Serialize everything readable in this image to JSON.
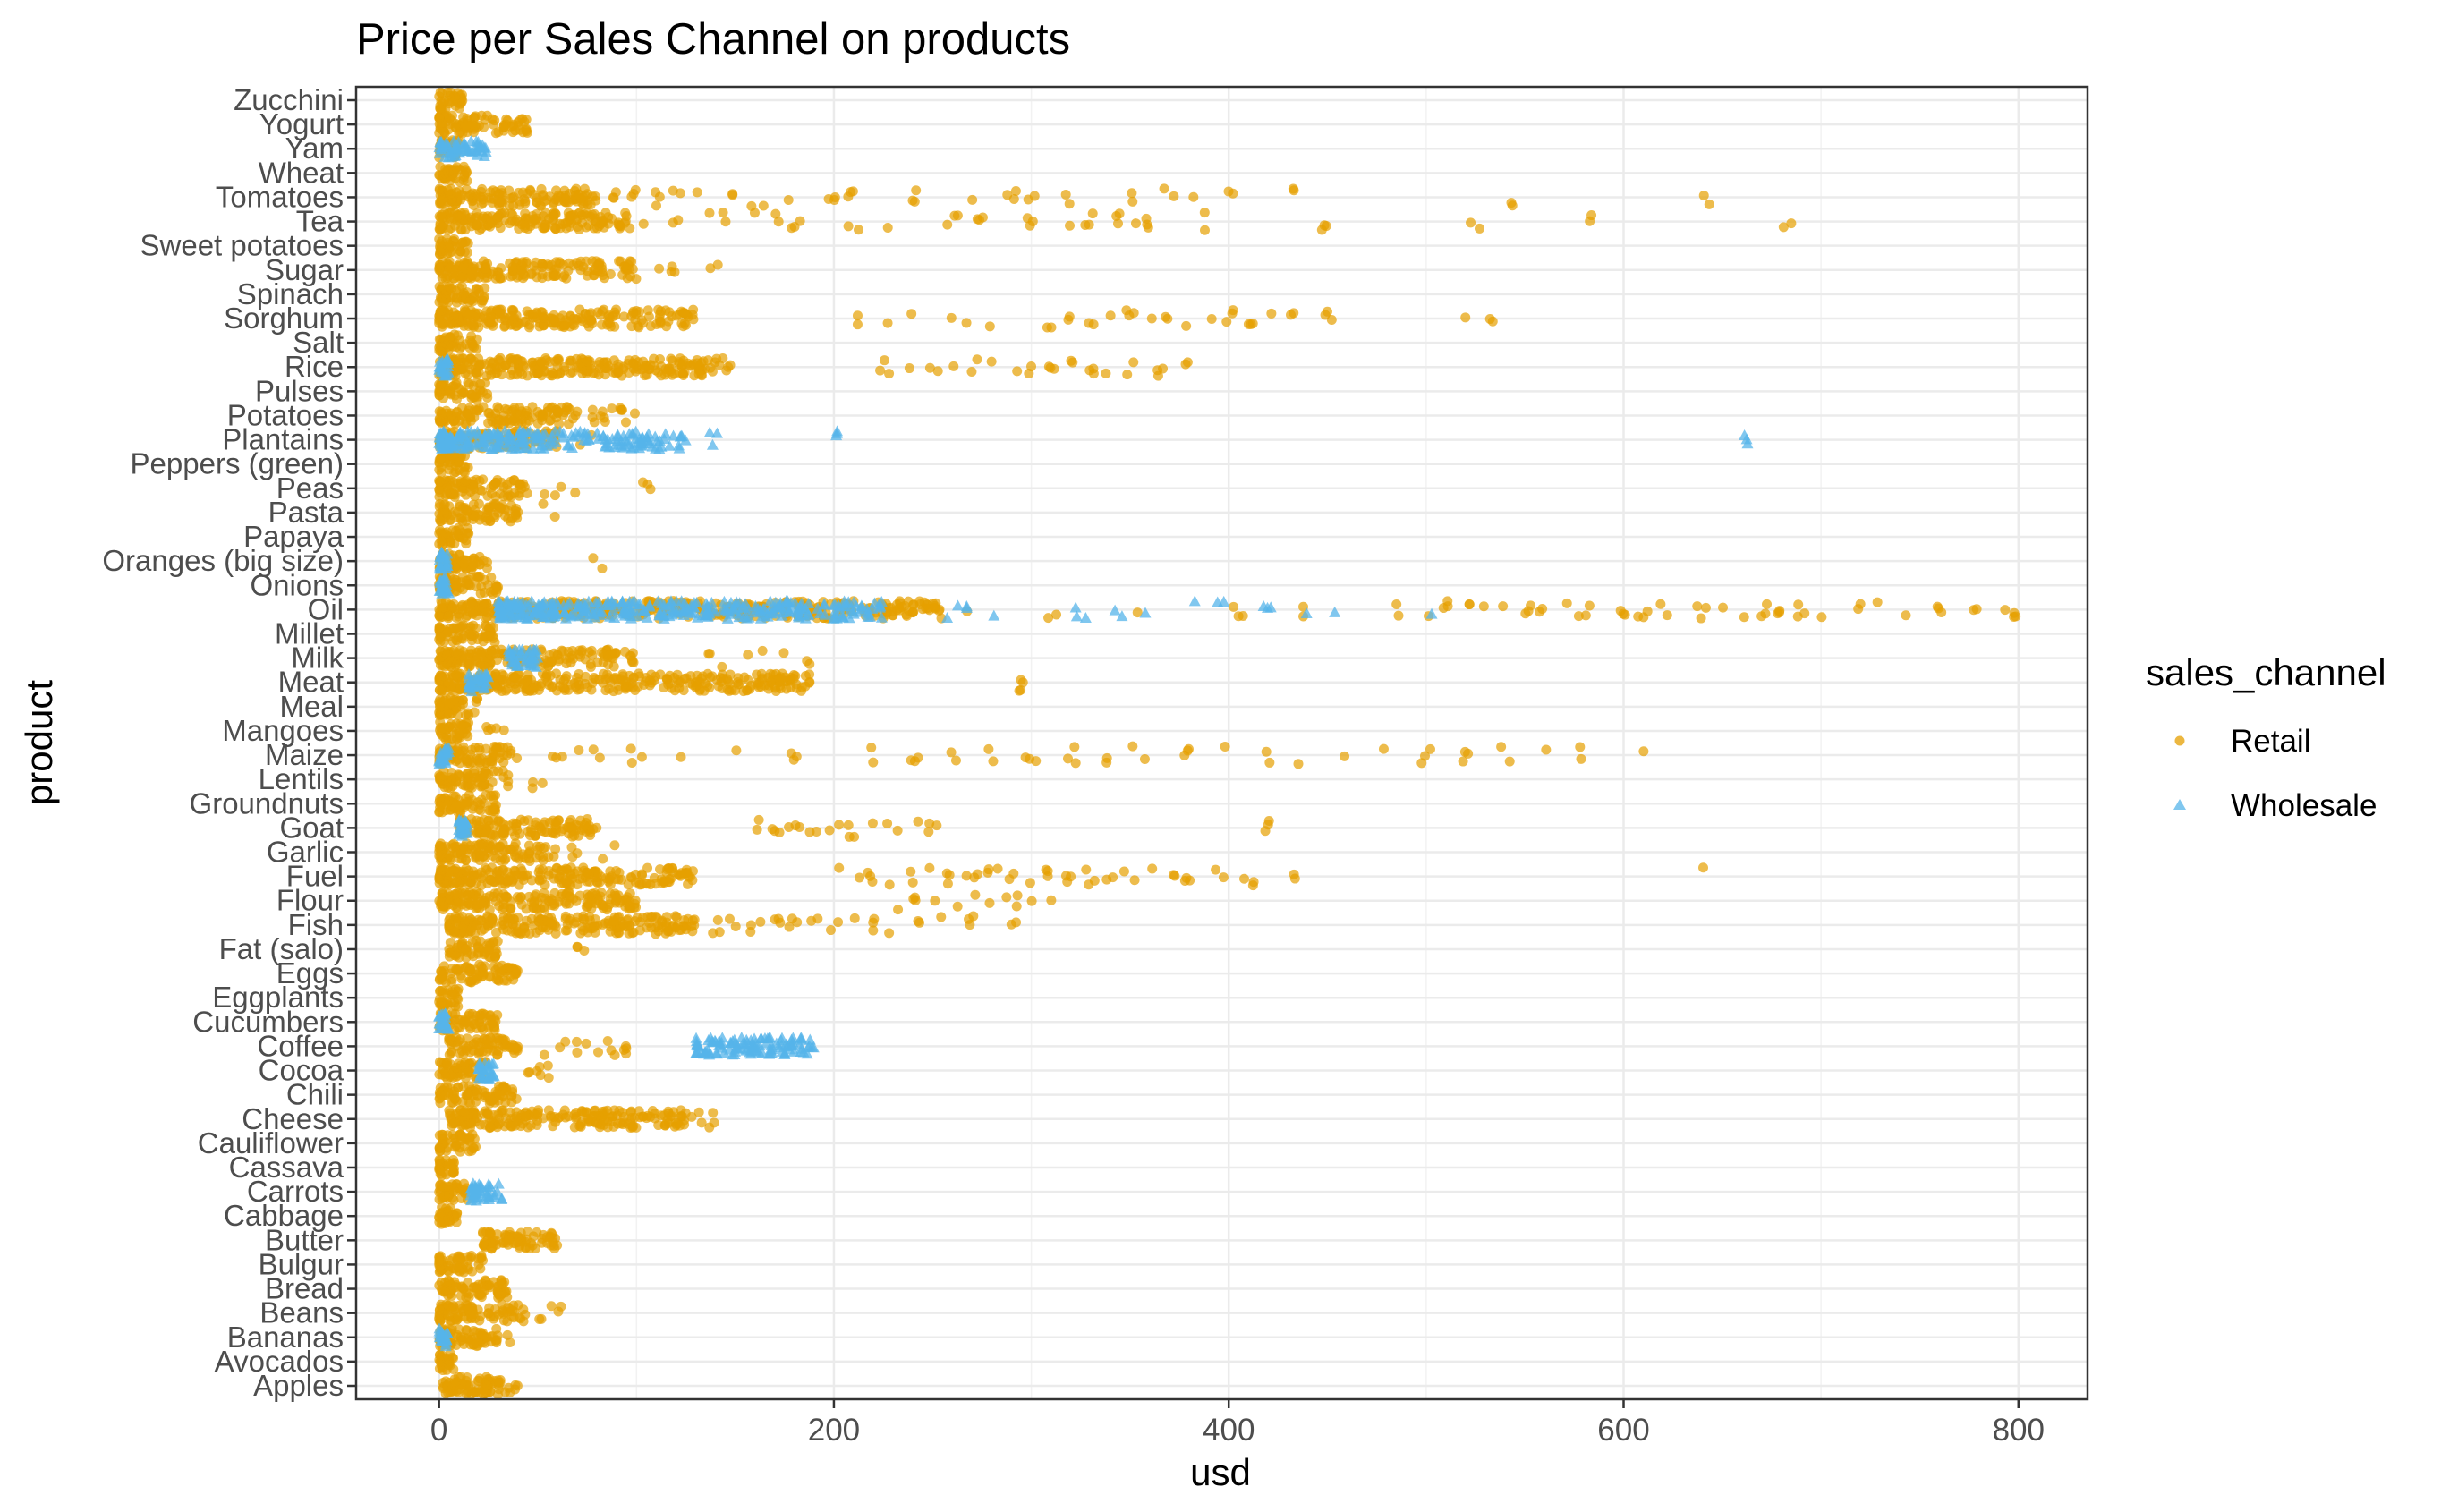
{
  "chart_data": {
    "type": "scatter",
    "title": "Price per Sales Channel on products",
    "xlabel": "usd",
    "ylabel": "product",
    "xlim": [
      -42,
      835
    ],
    "x_ticks": [
      0,
      200,
      400,
      600,
      800
    ],
    "x_tick_labels": [
      "0",
      "200",
      "400",
      "600",
      "800"
    ],
    "grid": true,
    "legend": {
      "title": "sales_channel",
      "placement": "right",
      "entries": [
        {
          "label": "Retail",
          "shape": "circle",
          "color": "#E69F00"
        },
        {
          "label": "Wholesale",
          "shape": "triangle",
          "color": "#56B4E9"
        }
      ]
    },
    "categories": [
      "Apples",
      "Avocados",
      "Bananas",
      "Beans",
      "Bread",
      "Bulgur",
      "Butter",
      "Cabbage",
      "Carrots",
      "Cassava",
      "Cauliflower",
      "Cheese",
      "Chili",
      "Cocoa",
      "Coffee",
      "Cucumbers",
      "Eggplants",
      "Eggs",
      "Fat (salo)",
      "Fish",
      "Flour",
      "Fuel",
      "Garlic",
      "Goat",
      "Groundnuts",
      "Lentils",
      "Maize",
      "Mangoes",
      "Meal",
      "Meat",
      "Milk",
      "Millet",
      "Oil",
      "Onions",
      "Oranges (big size)",
      "Papaya",
      "Pasta",
      "Peas",
      "Peppers (green)",
      "Plantains",
      "Potatoes",
      "Pulses",
      "Rice",
      "Salt",
      "Sorghum",
      "Spinach",
      "Sugar",
      "Sweet potatoes",
      "Tea",
      "Tomatoes",
      "Wheat",
      "Yam",
      "Yogurt",
      "Zucchini"
    ],
    "series": [
      {
        "name": "Retail",
        "ranges": [
          {
            "product": "Apples",
            "dense": [
              2,
              40
            ],
            "sparse": []
          },
          {
            "product": "Avocados",
            "dense": [
              0,
              8
            ],
            "sparse": []
          },
          {
            "product": "Bananas",
            "dense": [
              0,
              30
            ],
            "sparse": [
              33
            ]
          },
          {
            "product": "Beans",
            "dense": [
              0,
              45
            ],
            "sparse": [
              50,
              55,
              60
            ]
          },
          {
            "product": "Bread",
            "dense": [
              0,
              35
            ],
            "sparse": []
          },
          {
            "product": "Bulgur",
            "dense": [
              0,
              25
            ],
            "sparse": []
          },
          {
            "product": "Butter",
            "dense": [
              22,
              60
            ],
            "sparse": []
          },
          {
            "product": "Cabbage",
            "dense": [
              0,
              10
            ],
            "sparse": []
          },
          {
            "product": "Carrots",
            "dense": [
              0,
              15
            ],
            "sparse": []
          },
          {
            "product": "Cassava",
            "dense": [
              0,
              8
            ],
            "sparse": []
          },
          {
            "product": "Cauliflower",
            "dense": [
              0,
              20
            ],
            "sparse": []
          },
          {
            "product": "Cheese",
            "dense": [
              5,
              125
            ],
            "sparse": [
              128,
              133,
              138
            ]
          },
          {
            "product": "Chili",
            "dense": [
              0,
              40
            ],
            "sparse": []
          },
          {
            "product": "Cocoa",
            "dense": [
              0,
              25
            ],
            "sparse": [
              48,
              52,
              55,
              58
            ]
          },
          {
            "product": "Coffee",
            "dense": [
              5,
              40
            ],
            "sparse": [
              52,
              60,
              65,
              72,
              80,
              85,
              88,
              92,
              96
            ]
          },
          {
            "product": "Cucumbers",
            "dense": [
              0,
              30
            ],
            "sparse": []
          },
          {
            "product": "Eggplants",
            "dense": [
              0,
              10
            ],
            "sparse": []
          },
          {
            "product": "Eggs",
            "dense": [
              0,
              40
            ],
            "sparse": []
          },
          {
            "product": "Fat (salo)",
            "dense": [
              5,
              30
            ],
            "sparse": [
              72
            ]
          },
          {
            "product": "Fish",
            "dense": [
              5,
              130
            ],
            "sparse": [
              140,
              150,
              160,
              170,
              180,
              190,
              200,
              210,
              220,
              230,
              245,
              255,
              270,
              290
            ]
          },
          {
            "product": "Flour",
            "dense": [
              0,
              100
            ],
            "sparse": [
              230,
              240,
              250,
              260,
              270,
              280,
              290,
              300,
              310
            ]
          },
          {
            "product": "Fuel",
            "dense": [
              0,
              130
            ],
            "sparse": [
              200,
              210,
              220,
              230,
              240,
              250,
              260,
              270,
              280,
              290,
              300,
              310,
              320,
              330,
              340,
              350,
              360,
              370,
              380,
              395,
              410,
              435,
              638
            ]
          },
          {
            "product": "Garlic",
            "dense": [
              0,
              60
            ],
            "sparse": [
              70,
              80,
              90
            ]
          },
          {
            "product": "Goat",
            "dense": [
              10,
              80
            ],
            "sparse": [
              160,
              170,
              180,
              190,
              200,
              210,
              220,
              230,
              240,
              250,
              418
            ]
          },
          {
            "product": "Groundnuts",
            "dense": [
              0,
              30
            ],
            "sparse": []
          },
          {
            "product": "Lentils",
            "dense": [
              0,
              35
            ],
            "sparse": [
              50
            ]
          },
          {
            "product": "Maize",
            "dense": [
              0,
              40
            ],
            "sparse": [
              60,
              70,
              80,
              100,
              120,
              150,
              180,
              220,
              240,
              260,
              280,
              300,
              320,
              340,
              350,
              360,
              380,
              400,
              420,
              435,
              460,
              480,
              500,
              520,
              540,
              560,
              580,
              608
            ]
          },
          {
            "product": "Mangoes",
            "dense": [
              0,
              15
            ],
            "sparse": [
              25,
              30
            ]
          },
          {
            "product": "Meal",
            "dense": [
              0,
              20
            ],
            "sparse": []
          },
          {
            "product": "Meat",
            "dense": [
              0,
              190
            ],
            "sparse": [
              292,
              294
            ]
          },
          {
            "product": "Milk",
            "dense": [
              0,
              100
            ],
            "sparse": [
              135,
              145,
              155,
              165,
              175,
              185
            ]
          },
          {
            "product": "Millet",
            "dense": [
              0,
              30
            ],
            "sparse": []
          },
          {
            "product": "Oil",
            "dense": [
              0,
              255
            ],
            "sparse": [
              270,
              310,
              355,
              405,
              435,
              485,
              500,
              510,
              520,
              530,
              540,
              550,
              560,
              570,
              580,
              600,
              610,
              620,
              640,
              650,
              660,
              670,
              680,
              690,
              700,
              720,
              730,
              740,
              760,
              780,
              795,
              800
            ]
          },
          {
            "product": "Onions",
            "dense": [
              0,
              30
            ],
            "sparse": []
          },
          {
            "product": "Oranges (big size)",
            "dense": [
              0,
              25
            ],
            "sparse": [
              80
            ]
          },
          {
            "product": "Papaya",
            "dense": [
              0,
              15
            ],
            "sparse": []
          },
          {
            "product": "Pasta",
            "dense": [
              0,
              40
            ],
            "sparse": [
              55,
              60
            ]
          },
          {
            "product": "Peas",
            "dense": [
              0,
              45
            ],
            "sparse": [
              55,
              60,
              70,
              105
            ]
          },
          {
            "product": "Peppers (green)",
            "dense": [
              0,
              15
            ],
            "sparse": []
          },
          {
            "product": "Plantains",
            "dense": [
              0,
              60
            ],
            "sparse": [
              70,
              80
            ]
          },
          {
            "product": "Potatoes",
            "dense": [
              0,
              70
            ],
            "sparse": [
              75,
              80,
              85,
              90,
              95,
              100
            ]
          },
          {
            "product": "Pulses",
            "dense": [
              0,
              25
            ],
            "sparse": []
          },
          {
            "product": "Rice",
            "dense": [
              0,
              150
            ],
            "sparse": [
              225,
              240,
              250,
              260,
              270,
              280,
              290,
              300,
              310,
              320,
              330,
              340,
              350,
              365,
              380
            ]
          },
          {
            "product": "Salt",
            "dense": [
              0,
              20
            ],
            "sparse": []
          },
          {
            "product": "Sorghum",
            "dense": [
              0,
              130
            ],
            "sparse": [
              215,
              225,
              240,
              260,
              270,
              280,
              310,
              320,
              330,
              340,
              350,
              360,
              370,
              380,
              390,
              400,
              410,
              420,
              430,
              450,
              520,
              535
            ]
          },
          {
            "product": "Spinach",
            "dense": [
              0,
              25
            ],
            "sparse": []
          },
          {
            "product": "Sugar",
            "dense": [
              0,
              100
            ],
            "sparse": [
              110,
              120,
              140
            ]
          },
          {
            "product": "Sweet potatoes",
            "dense": [
              0,
              15
            ],
            "sparse": []
          },
          {
            "product": "Tea",
            "dense": [
              0,
              100
            ],
            "sparse": [
              105,
              120,
              135,
              145,
              160,
              170,
              180,
              210,
              230,
              260,
              275,
              300,
              320,
              330,
              345,
              355,
              360,
              390,
              450,
              525,
              585,
              683
            ]
          },
          {
            "product": "Tomatoes",
            "dense": [
              0,
              80
            ],
            "sparse": [
              90,
              100,
              110,
              120,
              130,
              150,
              160,
              165,
              180,
              200,
              210,
              240,
              270,
              290,
              300,
              320,
              350,
              370,
              385,
              400,
              430,
              545,
              643
            ]
          },
          {
            "product": "Wheat",
            "dense": [
              0,
              15
            ],
            "sparse": []
          },
          {
            "product": "Yam",
            "dense": [
              0,
              10
            ],
            "sparse": []
          },
          {
            "product": "Yogurt",
            "dense": [
              0,
              45
            ],
            "sparse": []
          },
          {
            "product": "Zucchini",
            "dense": [
              0,
              12
            ],
            "sparse": []
          }
        ]
      },
      {
        "name": "Wholesale",
        "ranges": [
          {
            "product": "Bananas",
            "dense": [
              0,
              5
            ],
            "sparse": []
          },
          {
            "product": "Carrots",
            "dense": [
              15,
              32
            ],
            "sparse": []
          },
          {
            "product": "Cocoa",
            "dense": [
              20,
              28
            ],
            "sparse": []
          },
          {
            "product": "Coffee",
            "dense": [
              130,
              190
            ],
            "sparse": []
          },
          {
            "product": "Cucumbers",
            "dense": [
              0,
              5
            ],
            "sparse": []
          },
          {
            "product": "Goat",
            "dense": [
              10,
              15
            ],
            "sparse": []
          },
          {
            "product": "Maize",
            "dense": [
              0,
              5
            ],
            "sparse": []
          },
          {
            "product": "Meat",
            "dense": [
              15,
              25
            ],
            "sparse": []
          },
          {
            "product": "Milk",
            "dense": [
              35,
              50
            ],
            "sparse": []
          },
          {
            "product": "Oil",
            "dense": [
              30,
              225
            ],
            "sparse": [
              260,
              265,
              280,
              325,
              345,
              360,
              385,
              395,
              420,
              440,
              455,
              505
            ]
          },
          {
            "product": "Onions",
            "dense": [
              0,
              5
            ],
            "sparse": []
          },
          {
            "product": "Oranges (big size)",
            "dense": [
              0,
              5
            ],
            "sparse": []
          },
          {
            "product": "Plantains",
            "dense": [
              0,
              125
            ],
            "sparse": [
              140,
              200,
              660
            ]
          },
          {
            "product": "Rice",
            "dense": [
              0,
              5
            ],
            "sparse": []
          },
          {
            "product": "Yam",
            "dense": [
              0,
              25
            ],
            "sparse": []
          }
        ]
      }
    ]
  }
}
